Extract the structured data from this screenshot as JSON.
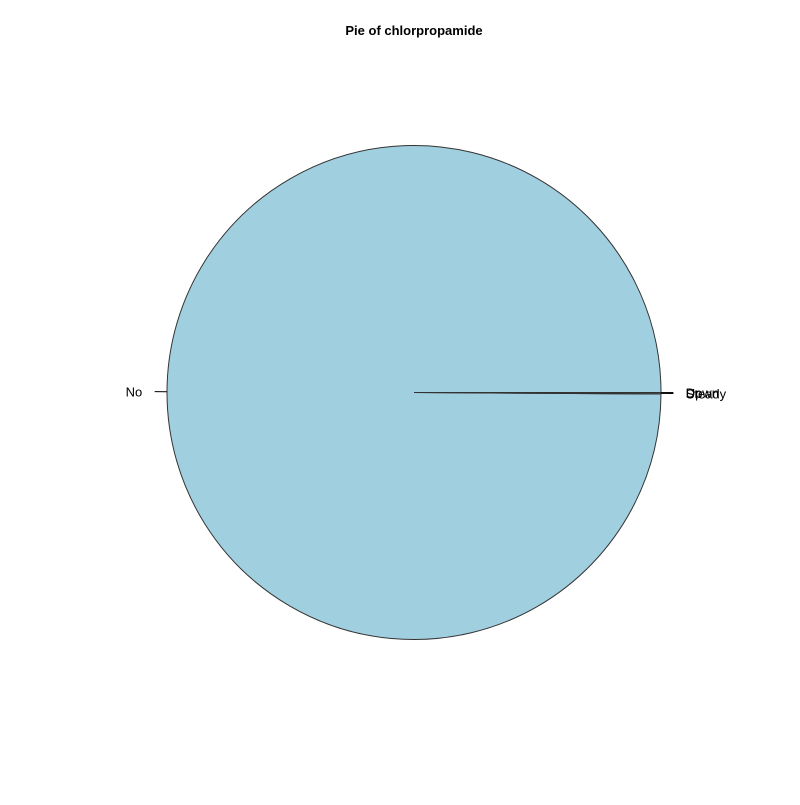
{
  "chart_data": {
    "type": "pie",
    "title": "Pie of chlorpropamide",
    "categories": [
      "No",
      "Steady",
      "Up",
      "Down"
    ],
    "values": [
      99.9,
      0.08,
      0.01,
      0.01
    ],
    "colors": [
      "#a0cfe0",
      "#f0f8ff",
      "#f0f8ff",
      "#f0f8ff"
    ],
    "start_angle_deg": 0,
    "direction": "counterclockwise"
  }
}
